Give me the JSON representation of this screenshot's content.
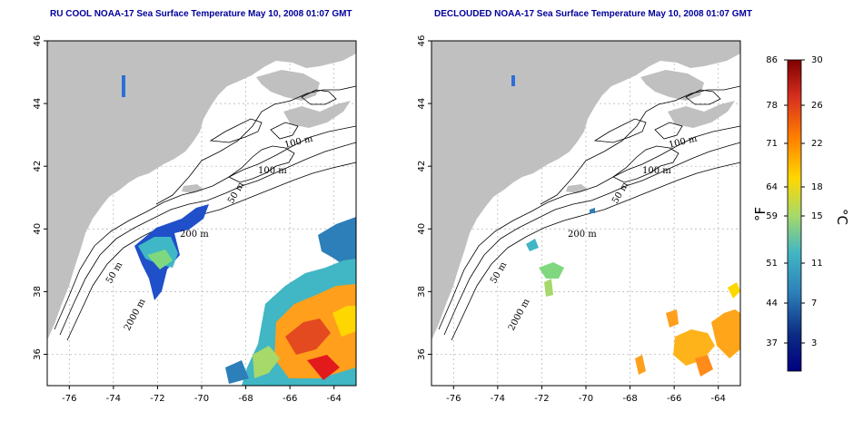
{
  "panels": [
    {
      "title": "RU COOL NOAA-17 Sea Surface Temperature May 10, 2008 01:07 GMT",
      "contour_labels": [
        "100 m",
        "100 m",
        "50 m",
        "200 m",
        "50 m",
        "2000 m"
      ]
    },
    {
      "title": "DECLOUDED NOAA-17 Sea Surface Temperature May 10, 2008 01:07 GMT",
      "contour_labels": [
        "100 m",
        "100 m",
        "50 m",
        "200 m",
        "50 m",
        "2000 m"
      ]
    }
  ],
  "axes": {
    "lat_ticks": [
      "36",
      "38",
      "40",
      "42",
      "44",
      "46"
    ],
    "lon_ticks": [
      "-76",
      "-74",
      "-72",
      "-70",
      "-68",
      "-66",
      "-64"
    ],
    "lat_range": [
      35,
      46
    ],
    "lon_range": [
      -77,
      -63
    ],
    "grid": true
  },
  "colorbar": {
    "fahrenheit_label": "°F",
    "celsius_label": "°C",
    "fahrenheit_ticks": [
      "86",
      "78",
      "71",
      "64",
      "59",
      "51",
      "44",
      "37"
    ],
    "celsius_ticks": [
      "30",
      "26",
      "22",
      "18",
      "15",
      "11",
      "7",
      "3"
    ],
    "colors": [
      "#7f0000",
      "#e31a1c",
      "#ff7f00",
      "#ffd700",
      "#a6d96a",
      "#41b6c4",
      "#225ea8",
      "#0c2c84",
      "#000080"
    ]
  },
  "colors": {
    "land": "#c0c0c0",
    "ocean": "#ffffff",
    "title": "#00009a",
    "grid": "#b0b0b0"
  }
}
